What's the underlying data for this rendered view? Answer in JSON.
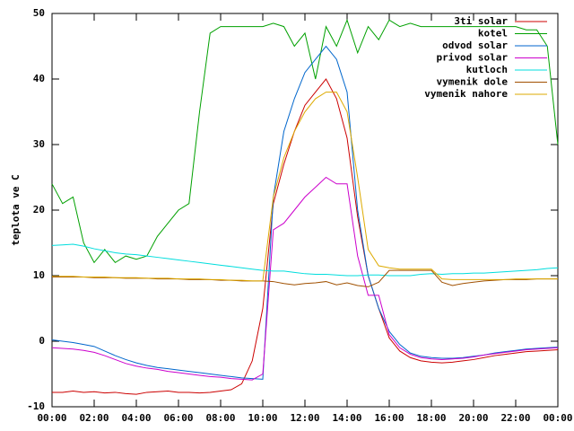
{
  "chart_data": {
    "type": "line",
    "y_label": "teplota ve C",
    "x": [
      0,
      0.5,
      1,
      1.5,
      2,
      2.5,
      3,
      3.5,
      4,
      4.5,
      5,
      5.5,
      6,
      6.5,
      7,
      7.5,
      8,
      8.5,
      9,
      9.5,
      10,
      10.5,
      11,
      11.5,
      12,
      12.5,
      13,
      13.5,
      14,
      14.5,
      15,
      15.5,
      16,
      16.5,
      17,
      17.5,
      18,
      18.5,
      19,
      19.5,
      20,
      20.5,
      21,
      21.5,
      22,
      22.5,
      23,
      23.5,
      24
    ],
    "xlim": [
      0,
      24
    ],
    "xticks": [
      {
        "value": 0,
        "label": "00:00"
      },
      {
        "value": 2,
        "label": "02:00"
      },
      {
        "value": 4,
        "label": "04:00"
      },
      {
        "value": 6,
        "label": "06:00"
      },
      {
        "value": 8,
        "label": "08:00"
      },
      {
        "value": 10,
        "label": "10:00"
      },
      {
        "value": 12,
        "label": "12:00"
      },
      {
        "value": 14,
        "label": "14:00"
      },
      {
        "value": 16,
        "label": "16:00"
      },
      {
        "value": 18,
        "label": "18:00"
      },
      {
        "value": 20,
        "label": "20:00"
      },
      {
        "value": 22,
        "label": "22:00"
      },
      {
        "value": 24,
        "label": "00:00"
      }
    ],
    "ylim": [
      -10,
      50
    ],
    "yticks": [
      -10,
      0,
      10,
      20,
      30,
      40,
      50
    ],
    "legend": "upper right",
    "series": [
      {
        "name": "3ti solar",
        "color": "#cc0000",
        "values": [
          -7.8,
          -7.8,
          -7.6,
          -7.8,
          -7.7,
          -7.9,
          -7.8,
          -8,
          -8.1,
          -7.8,
          -7.7,
          -7.6,
          -7.8,
          -7.8,
          -7.9,
          -7.8,
          -7.6,
          -7.4,
          -6.5,
          -3,
          5,
          21,
          27,
          32,
          36,
          38,
          40,
          37,
          31,
          19,
          10,
          5,
          0.5,
          -1.5,
          -2.5,
          -3,
          -3.2,
          -3.3,
          -3.2,
          -3,
          -2.8,
          -2.5,
          -2.2,
          -2,
          -1.8,
          -1.6,
          -1.5,
          -1.4,
          -1.3
        ]
      },
      {
        "name": "kotel",
        "color": "#00a000",
        "values": [
          24,
          21,
          22,
          15,
          12,
          14,
          12,
          13,
          12.5,
          13,
          16,
          18,
          20,
          21,
          35,
          47,
          48,
          48,
          48,
          48,
          48,
          48.5,
          48,
          45,
          47,
          40,
          48,
          45,
          49,
          44,
          48,
          46,
          49,
          48,
          48.5,
          48,
          48,
          48,
          48,
          48,
          48,
          48,
          48,
          48,
          48,
          47.5,
          47.5,
          45,
          30
        ]
      },
      {
        "name": "odvod solar",
        "color": "#0066cc",
        "values": [
          0.2,
          0,
          -0.2,
          -0.5,
          -0.8,
          -1.5,
          -2.2,
          -2.8,
          -3.3,
          -3.7,
          -4,
          -4.2,
          -4.4,
          -4.6,
          -4.8,
          -5,
          -5.2,
          -5.4,
          -5.6,
          -5.7,
          -5.8,
          22,
          32,
          37,
          41,
          43,
          45,
          43,
          38,
          20,
          10,
          5,
          1.5,
          -0.5,
          -1.8,
          -2.3,
          -2.5,
          -2.6,
          -2.6,
          -2.5,
          -2.3,
          -2.1,
          -1.8,
          -1.6,
          -1.4,
          -1.2,
          -1.1,
          -1,
          -0.9
        ]
      },
      {
        "name": "privod solar",
        "color": "#cc00cc",
        "values": [
          -1,
          -1.1,
          -1.2,
          -1.4,
          -1.7,
          -2.2,
          -2.8,
          -3.4,
          -3.8,
          -4.1,
          -4.3,
          -4.6,
          -4.8,
          -5,
          -5.2,
          -5.4,
          -5.5,
          -5.7,
          -5.8,
          -5.9,
          -5,
          17,
          18,
          20,
          22,
          23.5,
          25,
          24,
          24,
          13,
          7,
          7,
          1,
          -1,
          -2,
          -2.5,
          -2.7,
          -2.8,
          -2.7,
          -2.6,
          -2.4,
          -2.1,
          -1.9,
          -1.7,
          -1.5,
          -1.3,
          -1.2,
          -1.1,
          -1
        ]
      },
      {
        "name": "kutloch",
        "color": "#00dddd",
        "values": [
          14.6,
          14.7,
          14.8,
          14.5,
          14.1,
          13.8,
          13.5,
          13.3,
          13.2,
          13,
          12.8,
          12.6,
          12.4,
          12.2,
          12,
          11.8,
          11.6,
          11.4,
          11.2,
          11,
          10.8,
          10.7,
          10.7,
          10.5,
          10.3,
          10.2,
          10.2,
          10.1,
          10,
          10,
          10.1,
          10.1,
          10,
          10,
          10,
          10.2,
          10.3,
          10.2,
          10.3,
          10.3,
          10.4,
          10.4,
          10.5,
          10.6,
          10.7,
          10.8,
          10.9,
          11.1,
          11.2
        ]
      },
      {
        "name": "vymenik dole",
        "color": "#a05000",
        "values": [
          9.8,
          9.8,
          9.8,
          9.8,
          9.7,
          9.7,
          9.7,
          9.6,
          9.6,
          9.6,
          9.5,
          9.5,
          9.5,
          9.4,
          9.4,
          9.4,
          9.3,
          9.3,
          9.2,
          9.2,
          9.2,
          9.1,
          8.8,
          8.6,
          8.8,
          8.9,
          9.1,
          8.6,
          8.9,
          8.5,
          8.3,
          9,
          10.8,
          10.8,
          10.8,
          10.8,
          10.8,
          9,
          8.5,
          8.8,
          9,
          9.2,
          9.3,
          9.4,
          9.4,
          9.4,
          9.5,
          9.5,
          9.5
        ]
      },
      {
        "name": "vymenik nahore",
        "color": "#ddaa00",
        "values": [
          9.9,
          9.9,
          9.9,
          9.8,
          9.8,
          9.8,
          9.7,
          9.7,
          9.7,
          9.6,
          9.6,
          9.6,
          9.5,
          9.5,
          9.5,
          9.4,
          9.4,
          9.3,
          9.3,
          9.2,
          9.2,
          22,
          28,
          32,
          35,
          37,
          38,
          38,
          35,
          25,
          14,
          11.5,
          11.2,
          11,
          11,
          11,
          11,
          9.5,
          9.4,
          9.4,
          9.4,
          9.4,
          9.4,
          9.4,
          9.5,
          9.5,
          9.5,
          9.5,
          9.5
        ]
      }
    ]
  }
}
